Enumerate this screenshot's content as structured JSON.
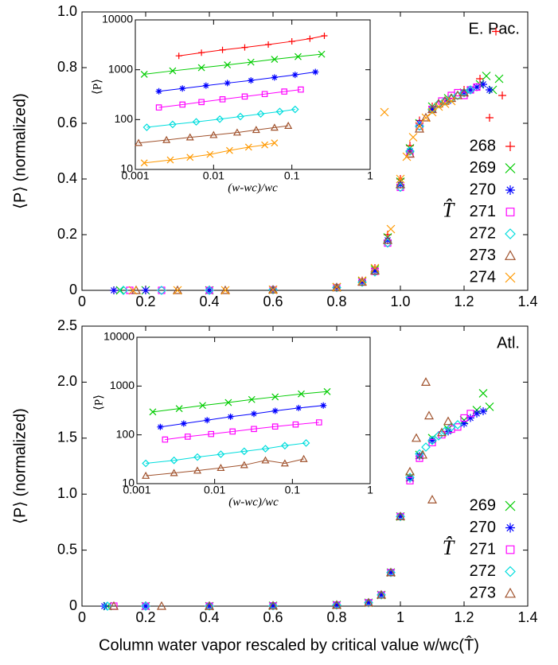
{
  "chart_data": [
    {
      "type": "scatter",
      "ylabel": "⟨P⟩ (normalized)",
      "annotation": "E. Pac.",
      "legend_title": "T̂",
      "legend": "lower right",
      "xlim": [
        0,
        1.4
      ],
      "xticks": [
        0,
        0.2,
        0.4,
        0.6,
        0.8,
        {
          "value": 1,
          "label": "1.0"
        },
        1.2,
        1.4
      ],
      "ylim": [
        0,
        1
      ],
      "yticks": [
        0,
        0.2,
        0.4,
        0.6,
        0.8,
        {
          "value": 1,
          "label": "1.0"
        }
      ],
      "series": [
        {
          "name": "268",
          "color": "#ff0000",
          "marker": "plus",
          "x": [
            0.1,
            0.2,
            0.4,
            0.6,
            0.8,
            0.88,
            0.92,
            0.96,
            1.0,
            1.03,
            1.06,
            1.1,
            1.15,
            1.2,
            1.25,
            1.28,
            1.3,
            1.32
          ],
          "values": [
            0,
            0,
            0,
            0.002,
            0.012,
            0.035,
            0.08,
            0.2,
            0.4,
            0.52,
            0.61,
            0.66,
            0.69,
            0.72,
            0.76,
            0.62,
            0.93,
            0.7
          ]
        },
        {
          "name": "269",
          "color": "#00cc00",
          "marker": "x",
          "x": [
            0.12,
            0.2,
            0.4,
            0.6,
            0.8,
            0.88,
            0.92,
            0.96,
            1.0,
            1.03,
            1.06,
            1.1,
            1.15,
            1.2,
            1.25,
            1.27,
            1.29,
            1.31
          ],
          "values": [
            0,
            0,
            0,
            0.002,
            0.011,
            0.032,
            0.075,
            0.19,
            0.39,
            0.51,
            0.6,
            0.66,
            0.69,
            0.71,
            0.74,
            0.77,
            0.72,
            0.76
          ]
        },
        {
          "name": "270",
          "color": "#0000ff",
          "marker": "star",
          "x": [
            0.1,
            0.2,
            0.4,
            0.6,
            0.8,
            0.88,
            0.92,
            0.96,
            1.0,
            1.03,
            1.06,
            1.1,
            1.15,
            1.2,
            1.22,
            1.24,
            1.26,
            1.28
          ],
          "values": [
            0,
            0,
            0,
            0.002,
            0.01,
            0.03,
            0.07,
            0.18,
            0.38,
            0.5,
            0.6,
            0.65,
            0.68,
            0.71,
            0.72,
            0.73,
            0.74,
            0.72
          ]
        },
        {
          "name": "271",
          "color": "#ff00ff",
          "marker": "square",
          "x": [
            0.15,
            0.25,
            0.4,
            0.6,
            0.8,
            0.88,
            0.92,
            0.96,
            1.0,
            1.03,
            1.06,
            1.1,
            1.13,
            1.16,
            1.18,
            1.2,
            1.22,
            1.24
          ],
          "values": [
            0,
            0,
            0,
            0.002,
            0.01,
            0.03,
            0.068,
            0.17,
            0.37,
            0.49,
            0.59,
            0.65,
            0.68,
            0.7,
            0.71,
            0.7,
            0.72,
            0.73
          ]
        },
        {
          "name": "272",
          "color": "#00dddd",
          "marker": "diamond",
          "x": [
            0.13,
            0.25,
            0.4,
            0.6,
            0.8,
            0.88,
            0.92,
            0.96,
            1.0,
            1.03,
            1.06,
            1.1,
            1.12,
            1.14,
            1.16,
            1.18,
            1.2,
            1.22
          ],
          "values": [
            0,
            0,
            0,
            0.002,
            0.01,
            0.029,
            0.066,
            0.17,
            0.37,
            0.5,
            0.59,
            0.65,
            0.67,
            0.68,
            0.69,
            0.7,
            0.71,
            0.72
          ]
        },
        {
          "name": "273",
          "color": "#a0522d",
          "marker": "triangle",
          "x": [
            0.17,
            0.3,
            0.45,
            0.6,
            0.8,
            0.88,
            0.92,
            0.96,
            1.0,
            1.03,
            1.06,
            1.08,
            1.1,
            1.12,
            1.14,
            1.16,
            1.18,
            1.2
          ],
          "values": [
            0,
            0,
            0,
            0.002,
            0.01,
            0.03,
            0.07,
            0.18,
            0.38,
            0.49,
            0.58,
            0.62,
            0.65,
            0.67,
            0.68,
            0.69,
            0.7,
            0.71
          ]
        },
        {
          "name": "274",
          "color": "#ff9900",
          "marker": "x",
          "x": [
            0.16,
            0.3,
            0.45,
            0.6,
            0.8,
            0.88,
            0.92,
            0.95,
            0.97,
            1.0,
            1.02,
            1.04,
            1.06,
            1.08,
            1.1,
            1.12,
            1.14,
            1.16
          ],
          "values": [
            0,
            0,
            0,
            0.002,
            0.012,
            0.035,
            0.08,
            0.64,
            0.22,
            0.4,
            0.48,
            0.55,
            0.59,
            0.62,
            0.64,
            0.66,
            0.67,
            0.68
          ]
        }
      ]
    },
    {
      "type": "scatter",
      "xlabel": "(w-wc)/wc",
      "ylabel": "⟨P⟩",
      "xlog": true,
      "ylog": true,
      "xlim": [
        0.001,
        1
      ],
      "xticks": [
        0.001,
        0.01,
        0.1,
        1
      ],
      "ylim": [
        10,
        10000
      ],
      "yticks": [
        10,
        100,
        1000,
        10000
      ],
      "series": [
        {
          "name": "268",
          "color": "#ff0000",
          "marker": "plus",
          "x": [
            0.0036,
            0.007,
            0.013,
            0.025,
            0.05,
            0.1,
            0.17,
            0.26
          ],
          "values": [
            1900,
            2200,
            2500,
            2800,
            3200,
            3700,
            4200,
            4800
          ]
        },
        {
          "name": "269",
          "color": "#00cc00",
          "marker": "x",
          "x": [
            0.0013,
            0.003,
            0.007,
            0.015,
            0.03,
            0.06,
            0.12,
            0.24
          ],
          "values": [
            810,
            950,
            1100,
            1250,
            1420,
            1620,
            1830,
            2050
          ]
        },
        {
          "name": "270",
          "color": "#0000ff",
          "marker": "star",
          "x": [
            0.002,
            0.004,
            0.008,
            0.015,
            0.03,
            0.06,
            0.11,
            0.2
          ],
          "values": [
            370,
            420,
            480,
            540,
            610,
            700,
            790,
            900
          ]
        },
        {
          "name": "271",
          "color": "#ff00ff",
          "marker": "square",
          "x": [
            0.002,
            0.004,
            0.007,
            0.013,
            0.025,
            0.045,
            0.08,
            0.13
          ],
          "values": [
            175,
            200,
            225,
            255,
            290,
            325,
            365,
            400
          ]
        },
        {
          "name": "272",
          "color": "#00dddd",
          "marker": "diamond",
          "x": [
            0.0014,
            0.003,
            0.006,
            0.012,
            0.022,
            0.04,
            0.07,
            0.11
          ],
          "values": [
            70,
            80,
            90,
            102,
            115,
            130,
            145,
            160
          ]
        },
        {
          "name": "273",
          "color": "#a0522d",
          "marker": "triangle",
          "x": [
            0.0011,
            0.0025,
            0.005,
            0.01,
            0.02,
            0.035,
            0.06,
            0.09
          ],
          "values": [
            34,
            39,
            44,
            49,
            55,
            62,
            69,
            75
          ]
        },
        {
          "name": "274",
          "color": "#ff9900",
          "marker": "x",
          "x": [
            0.0013,
            0.0028,
            0.005,
            0.009,
            0.016,
            0.028,
            0.045,
            0.06
          ],
          "values": [
            13.5,
            15.5,
            17.5,
            20,
            24,
            28,
            31,
            34
          ]
        }
      ]
    },
    {
      "type": "scatter",
      "ylabel": "⟨P⟩ (normalized)",
      "annotation": "Atl.",
      "legend_title": "T̂",
      "legend": "lower right",
      "xlabel": "Column water vapor rescaled by critical value w/wc(T̂)",
      "xlim": [
        0,
        1.4
      ],
      "xticks": [
        0,
        0.2,
        0.4,
        0.6,
        0.8,
        1,
        1.2,
        1.4
      ],
      "ylim": [
        0,
        2.5
      ],
      "yticks": [
        0,
        0.5,
        {
          "value": 1,
          "label": "1.0"
        },
        1.5,
        {
          "value": 2,
          "label": "2.0"
        },
        2.5
      ],
      "series": [
        {
          "name": "269",
          "color": "#00cc00",
          "marker": "x",
          "x": [
            0.08,
            0.2,
            0.4,
            0.6,
            0.8,
            0.9,
            0.94,
            0.97,
            1.0,
            1.03,
            1.06,
            1.1,
            1.15,
            1.2,
            1.24,
            1.26,
            1.28
          ],
          "values": [
            0,
            0,
            0,
            0.003,
            0.01,
            0.03,
            0.1,
            0.3,
            0.8,
            1.15,
            1.35,
            1.5,
            1.58,
            1.66,
            1.75,
            1.9,
            1.78
          ]
        },
        {
          "name": "270",
          "color": "#0000ff",
          "marker": "star",
          "x": [
            0.07,
            0.2,
            0.4,
            0.6,
            0.8,
            0.9,
            0.94,
            0.97,
            1.0,
            1.03,
            1.06,
            1.1,
            1.15,
            1.2,
            1.22,
            1.24,
            1.26
          ],
          "values": [
            0,
            0,
            0,
            0.003,
            0.01,
            0.03,
            0.1,
            0.3,
            0.8,
            1.14,
            1.34,
            1.48,
            1.56,
            1.63,
            1.68,
            1.72,
            1.74
          ]
        },
        {
          "name": "271",
          "color": "#ff00ff",
          "marker": "square",
          "x": [
            0.1,
            0.2,
            0.4,
            0.6,
            0.8,
            0.9,
            0.94,
            0.97,
            1.0,
            1.03,
            1.06,
            1.1,
            1.13,
            1.16,
            1.18,
            1.2,
            1.22
          ],
          "values": [
            0,
            0,
            0,
            0.003,
            0.01,
            0.03,
            0.1,
            0.3,
            0.8,
            1.12,
            1.32,
            1.46,
            1.53,
            1.58,
            1.6,
            1.68,
            1.72
          ]
        },
        {
          "name": "272",
          "color": "#00dddd",
          "marker": "diamond",
          "x": [
            0.08,
            0.2,
            0.4,
            0.6,
            0.8,
            0.9,
            0.94,
            0.97,
            1.0,
            1.03,
            1.06,
            1.08,
            1.1,
            1.12,
            1.14,
            1.16,
            1.18
          ],
          "values": [
            0,
            0,
            0,
            0.003,
            0.01,
            0.03,
            0.1,
            0.3,
            0.8,
            1.15,
            1.36,
            1.42,
            1.48,
            1.52,
            1.56,
            1.6,
            1.62
          ]
        },
        {
          "name": "273",
          "color": "#a0522d",
          "marker": "triangle",
          "x": [
            0.1,
            0.25,
            0.4,
            0.6,
            0.8,
            0.9,
            0.94,
            0.97,
            1.0,
            1.03,
            1.05,
            1.07,
            1.08,
            1.09,
            1.1,
            1.13,
            1.15
          ],
          "values": [
            0,
            0,
            0,
            0.003,
            0.01,
            0.03,
            0.1,
            0.3,
            0.8,
            1.2,
            1.5,
            1.35,
            2.0,
            1.7,
            0.95,
            1.55,
            1.65
          ]
        }
      ]
    },
    {
      "type": "scatter",
      "xlabel": "(w-wc)/wc",
      "ylabel": "⟨P⟩",
      "xlog": true,
      "ylog": true,
      "xlim": [
        0.001,
        1
      ],
      "xticks": [
        0.001,
        0.01,
        0.1,
        1
      ],
      "ylim": [
        10,
        10000
      ],
      "yticks": [
        10,
        100,
        1000,
        10000
      ],
      "series": [
        {
          "name": "269",
          "color": "#00cc00",
          "marker": "x",
          "x": [
            0.0016,
            0.0035,
            0.007,
            0.015,
            0.03,
            0.06,
            0.13,
            0.28
          ],
          "values": [
            295,
            345,
            400,
            460,
            530,
            600,
            690,
            770
          ]
        },
        {
          "name": "270",
          "color": "#0000ff",
          "marker": "star",
          "x": [
            0.002,
            0.004,
            0.008,
            0.016,
            0.032,
            0.06,
            0.12,
            0.25
          ],
          "values": [
            145,
            170,
            200,
            235,
            270,
            310,
            355,
            400
          ]
        },
        {
          "name": "271",
          "color": "#ff00ff",
          "marker": "square",
          "x": [
            0.0023,
            0.0045,
            0.009,
            0.017,
            0.032,
            0.06,
            0.11,
            0.22
          ],
          "values": [
            80,
            92,
            104,
            117,
            132,
            148,
            163,
            180
          ]
        },
        {
          "name": "272",
          "color": "#00dddd",
          "marker": "diamond",
          "x": [
            0.0013,
            0.003,
            0.006,
            0.012,
            0.024,
            0.045,
            0.08,
            0.15
          ],
          "values": [
            26,
            30,
            35,
            40,
            46,
            52,
            60,
            68
          ]
        },
        {
          "name": "273",
          "color": "#a0522d",
          "marker": "triangle",
          "x": [
            0.0013,
            0.003,
            0.006,
            0.012,
            0.024,
            0.045,
            0.08,
            0.14
          ],
          "values": [
            14.5,
            16.5,
            18.5,
            21,
            24,
            30,
            26,
            32
          ]
        }
      ]
    }
  ]
}
